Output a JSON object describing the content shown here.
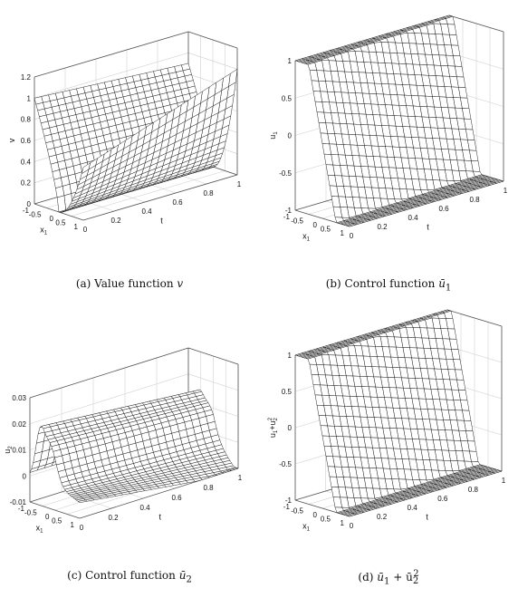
{
  "chart_data": [
    {
      "type": "surface",
      "caption": "(a) Value function v",
      "caption_prefix": "(a) Value function",
      "caption_var": "v",
      "xlabel": "x",
      "xlabel_sub": "1",
      "ylabel": "t",
      "zlabel": "v",
      "zlabel_sub": "",
      "xlim": [
        -1,
        1
      ],
      "ylim": [
        0,
        1
      ],
      "zlim": [
        0,
        1.2
      ],
      "x_ticks": [
        "-1",
        "-0.5",
        "0",
        "0.5",
        "1"
      ],
      "t_ticks": [
        "0",
        "0.2",
        "0.4",
        "0.6",
        "0.8",
        "1"
      ],
      "z_ticks": [
        "0",
        "0.2",
        "0.4",
        "0.6",
        "0.8",
        "1",
        "1.2"
      ],
      "z_tick_values": [
        0,
        0.2,
        0.4,
        0.6,
        0.8,
        1,
        1.2
      ],
      "shape": "value"
    },
    {
      "type": "surface",
      "caption": "(b) Control function ū1",
      "caption_prefix": "(b) Control function",
      "caption_var": "ū",
      "caption_sub": "1",
      "xlabel": "x",
      "xlabel_sub": "1",
      "ylabel": "t",
      "zlabel": "u",
      "zlabel_sub": "1",
      "xlim": [
        -1,
        1
      ],
      "ylim": [
        0,
        1
      ],
      "zlim": [
        -1,
        1
      ],
      "x_ticks": [
        "-1",
        "-0.5",
        "0",
        "0.5",
        "1"
      ],
      "t_ticks": [
        "0",
        "0.2",
        "0.4",
        "0.6",
        "0.8",
        "1"
      ],
      "z_ticks": [
        "-1",
        "-0.5",
        "0",
        "0.5",
        "1"
      ],
      "z_tick_values": [
        -1,
        -0.5,
        0,
        0.5,
        1
      ],
      "shape": "control1"
    },
    {
      "type": "surface",
      "caption": "(c) Control function ū2",
      "caption_prefix": "(c) Control function",
      "caption_var": "ū",
      "caption_sub": "2",
      "xlabel": "x",
      "xlabel_sub": "1",
      "ylabel": "t",
      "zlabel": "u",
      "zlabel_sub": "2",
      "xlim": [
        -1,
        1
      ],
      "ylim": [
        0,
        1
      ],
      "zlim": [
        -0.01,
        0.03
      ],
      "x_ticks": [
        "-1",
        "-0.5",
        "0",
        "0.5",
        "1"
      ],
      "t_ticks": [
        "0",
        "0.2",
        "0.4",
        "0.6",
        "0.8",
        "1"
      ],
      "z_ticks": [
        "-0.01",
        "0",
        "0.01",
        "0.02",
        "0.03"
      ],
      "z_tick_values": [
        -0.01,
        0,
        0.01,
        0.02,
        0.03
      ],
      "shape": "control2"
    },
    {
      "type": "surface",
      "caption": "(d) ū1 + ū2²",
      "caption_prefix": "(d)",
      "caption_var": "ū",
      "caption_sub": "1",
      "caption_suffix": " + ū",
      "caption_suffix_sub": "2",
      "caption_suffix_sup": "2",
      "xlabel": "x",
      "xlabel_sub": "1",
      "ylabel": "t",
      "zlabel": "u",
      "zlabel_sub": "1",
      "zlabel_extra": "+u",
      "zlabel_extra_sub": "2",
      "zlabel_extra_sup": "2",
      "xlim": [
        -1,
        1
      ],
      "ylim": [
        0,
        1
      ],
      "zlim": [
        -1,
        1
      ],
      "x_ticks": [
        "-1",
        "-0.5",
        "0",
        "0.5",
        "1"
      ],
      "t_ticks": [
        "0",
        "0.2",
        "0.4",
        "0.6",
        "0.8",
        "1"
      ],
      "z_ticks": [
        "-1",
        "-0.5",
        "0",
        "0.5",
        "1"
      ],
      "z_tick_values": [
        -1,
        -0.5,
        0,
        0.5,
        1
      ],
      "shape": "control1"
    }
  ]
}
